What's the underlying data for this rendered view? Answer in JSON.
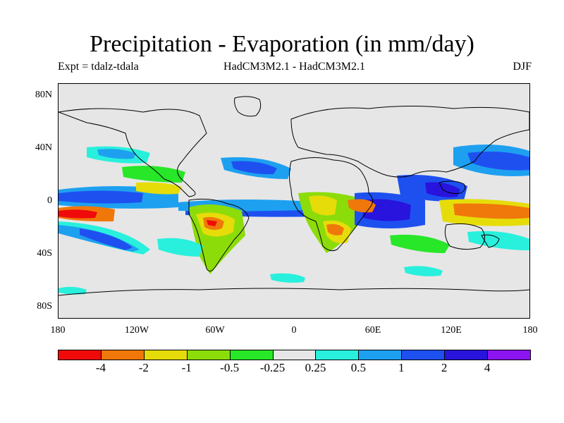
{
  "title": "Precipitation - Evaporation (in mm/day)",
  "subtitle_left": "Expt = tdalz-tdala",
  "subtitle_center": "HadCM3M2.1 - HadCM3M2.1",
  "subtitle_right": "DJF",
  "axes": {
    "y_labels": [
      "80N",
      "40N",
      "0",
      "40S",
      "80S"
    ],
    "x_labels": [
      "180",
      "120W",
      "60W",
      "0",
      "60E",
      "120E",
      "180"
    ]
  },
  "colorbar": {
    "colors": [
      "#f00a0a",
      "#f0780a",
      "#e6dc0a",
      "#8cdc0a",
      "#28e628",
      "#e6e6e6",
      "#28f0dc",
      "#1ea0f0",
      "#1e50f0",
      "#2814dc",
      "#8c14f0"
    ],
    "labels": [
      "-4",
      "-2",
      "-1",
      "-0.5",
      "-0.25",
      "0.25",
      "0.5",
      "1",
      "2",
      "4"
    ]
  },
  "colors": {
    "background": "#e6e6e6"
  }
}
